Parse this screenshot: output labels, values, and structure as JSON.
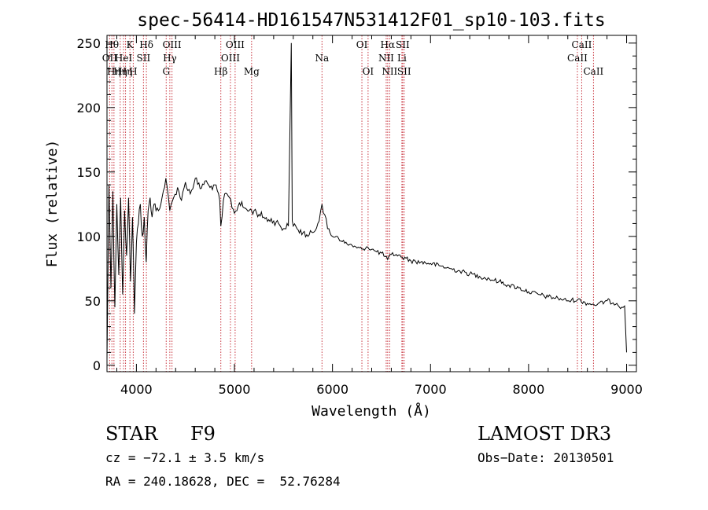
{
  "chart_data": {
    "type": "line",
    "title": "spec-56414-HD161547N531412F01_sp10-103.fits",
    "xlabel": "Wavelength (Å)",
    "ylabel": "Flux (relative)",
    "xlim": [
      3700,
      9100
    ],
    "ylim": [
      -5,
      256
    ],
    "xticks": [
      4000,
      5000,
      6000,
      7000,
      8000,
      9000
    ],
    "xtick_labels": [
      "4000",
      "5000",
      "6000",
      "7000",
      "8000",
      "9000"
    ],
    "yticks": [
      0,
      50,
      100,
      150,
      200,
      250
    ],
    "ytick_labels": [
      "0",
      "50",
      "100",
      "150",
      "200",
      "250"
    ],
    "series": [
      {
        "name": "spectrum",
        "x": [
          3700,
          3720,
          3740,
          3760,
          3780,
          3800,
          3820,
          3840,
          3860,
          3880,
          3900,
          3920,
          3940,
          3960,
          3980,
          4000,
          4020,
          4040,
          4060,
          4080,
          4100,
          4120,
          4140,
          4160,
          4180,
          4200,
          4250,
          4300,
          4340,
          4380,
          4420,
          4460,
          4500,
          4550,
          4600,
          4650,
          4700,
          4750,
          4800,
          4850,
          4861,
          4900,
          4950,
          5000,
          5050,
          5100,
          5150,
          5200,
          5250,
          5300,
          5350,
          5400,
          5450,
          5500,
          5550,
          5580,
          5590,
          5600,
          5650,
          5700,
          5750,
          5800,
          5850,
          5893,
          5950,
          6000,
          6050,
          6100,
          6150,
          6200,
          6250,
          6300,
          6350,
          6400,
          6450,
          6500,
          6563,
          6600,
          6650,
          6700,
          6750,
          6800,
          6900,
          7000,
          7100,
          7200,
          7300,
          7400,
          7500,
          7600,
          7700,
          7800,
          7900,
          8000,
          8100,
          8200,
          8300,
          8400,
          8500,
          8600,
          8700,
          8800,
          8900,
          8950,
          8980,
          9000
        ],
        "y": [
          5,
          140,
          60,
          135,
          45,
          125,
          70,
          130,
          55,
          120,
          85,
          130,
          65,
          115,
          40,
          95,
          110,
          125,
          100,
          115,
          80,
          120,
          130,
          115,
          125,
          120,
          125,
          145,
          120,
          130,
          138,
          128,
          142,
          133,
          145,
          137,
          143,
          138,
          140,
          128,
          108,
          133,
          130,
          118,
          126,
          122,
          120,
          120,
          117,
          115,
          113,
          112,
          110,
          106,
          108,
          250,
          112,
          108,
          105,
          103,
          100,
          103,
          110,
          125,
          106,
          100,
          100,
          96,
          94,
          93,
          91,
          90,
          92,
          90,
          88,
          87,
          82,
          86,
          86,
          84,
          83,
          81,
          80,
          79,
          77,
          75,
          73,
          71,
          69,
          67,
          65,
          62,
          60,
          57,
          55,
          53,
          52,
          50,
          51,
          48,
          47,
          50,
          48,
          45,
          46,
          10
        ]
      }
    ],
    "lines": [
      {
        "x": 3727,
        "row": 1,
        "label": "OII"
      },
      {
        "x": 3750,
        "row": 0,
        "label": "Hθ"
      },
      {
        "x": 3771,
        "row": 2,
        "label": "Hη"
      },
      {
        "x": 3835,
        "row": 2,
        "label": "Hη"
      },
      {
        "x": 3869,
        "row": 1,
        "label": "HeI"
      },
      {
        "x": 3889,
        "row": 2,
        "label": "Hη"
      },
      {
        "x": 3934,
        "row": 0,
        "label": "K"
      },
      {
        "x": 3968,
        "row": 2,
        "label": "H"
      },
      {
        "x": 4072,
        "row": 1,
        "label": "SII"
      },
      {
        "x": 4102,
        "row": 0,
        "label": "Hδ"
      },
      {
        "x": 4304,
        "row": 2,
        "label": "G"
      },
      {
        "x": 4341,
        "row": 1,
        "label": "Hγ"
      },
      {
        "x": 4363,
        "row": 0,
        "label": "OIII"
      },
      {
        "x": 4861,
        "row": 2,
        "label": "Hβ"
      },
      {
        "x": 4959,
        "row": 1,
        "label": "OIII"
      },
      {
        "x": 5007,
        "row": 0,
        "label": "OIII"
      },
      {
        "x": 5175,
        "row": 2,
        "label": "Mg"
      },
      {
        "x": 5893,
        "row": 1,
        "label": "Na"
      },
      {
        "x": 6300,
        "row": 0,
        "label": "OI"
      },
      {
        "x": 6363,
        "row": 2,
        "label": "OI"
      },
      {
        "x": 6548,
        "row": 1,
        "label": "NII"
      },
      {
        "x": 6563,
        "row": 0,
        "label": "Hα"
      },
      {
        "x": 6583,
        "row": 2,
        "label": "NII"
      },
      {
        "x": 6708,
        "row": 1,
        "label": "Li"
      },
      {
        "x": 6716,
        "row": 0,
        "label": "SII"
      },
      {
        "x": 6731,
        "row": 2,
        "label": "SII"
      },
      {
        "x": 8498,
        "row": 1,
        "label": "CaII"
      },
      {
        "x": 8542,
        "row": 0,
        "label": "CaII"
      },
      {
        "x": 8662,
        "row": 2,
        "label": "CaII"
      }
    ],
    "annotations": {
      "object_class": "STAR",
      "subclass": "F9",
      "survey": "LAMOST DR3",
      "cz": "cz = −72.1 ± 3.5 km/s",
      "obs_date": "Obs−Date: 20130501",
      "radec": "RA = 240.18628, DEC =  52.76284"
    }
  }
}
